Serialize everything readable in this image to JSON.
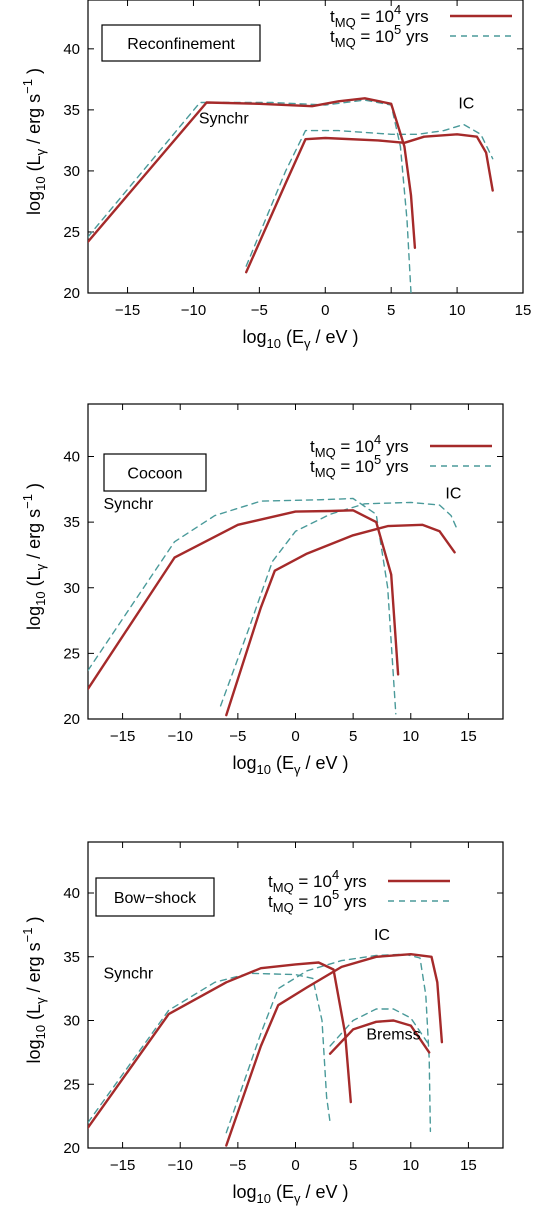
{
  "chart_data": [
    {
      "type": "line",
      "title": "Reconfinement",
      "xlabel": "log10 (Eγ / eV )",
      "ylabel": "log10 (Lγ / erg s−1 )",
      "xlim": [
        -18,
        15
      ],
      "ylim": [
        20,
        44
      ],
      "xticks": [
        "−15",
        "−10",
        "−5",
        "0",
        "5",
        "10",
        "15"
      ],
      "yticks": [
        "20",
        "25",
        "30",
        "35",
        "40"
      ],
      "annotations": [
        "Synchr",
        "IC"
      ],
      "legend_position": "top-right",
      "series": [
        {
          "name": "tMQ = 10^4 yrs",
          "style": "solid",
          "color": "#a52a2a",
          "component": "Synchr",
          "points": [
            [
              -18,
              24.2
            ],
            [
              -9,
              35.6
            ],
            [
              -5,
              35.5
            ],
            [
              -1,
              35.3
            ],
            [
              1,
              35.7
            ],
            [
              3,
              35.95
            ],
            [
              5,
              35.5
            ],
            [
              6,
              32
            ],
            [
              6.5,
              28
            ],
            [
              6.8,
              23.7
            ]
          ]
        },
        {
          "name": "tMQ = 10^5 yrs",
          "style": "dashed",
          "color": "#4a9a9a",
          "component": "Synchr",
          "points": [
            [
              -18,
              24.6
            ],
            [
              -9.5,
              35.6
            ],
            [
              -4,
              35.6
            ],
            [
              0,
              35.4
            ],
            [
              3,
              35.8
            ],
            [
              5,
              35.4
            ],
            [
              5.7,
              32
            ],
            [
              6.2,
              26
            ],
            [
              6.5,
              20
            ]
          ]
        },
        {
          "name": "tMQ = 10^4 yrs",
          "style": "solid",
          "color": "#a52a2a",
          "component": "IC",
          "points": [
            [
              -6,
              21.7
            ],
            [
              -3,
              29
            ],
            [
              -1.5,
              32.6
            ],
            [
              0,
              32.7
            ],
            [
              4,
              32.5
            ],
            [
              6,
              32.3
            ],
            [
              7.5,
              32.8
            ],
            [
              10,
              33
            ],
            [
              11.5,
              32.8
            ],
            [
              12.2,
              31.5
            ],
            [
              12.7,
              28.4
            ]
          ]
        },
        {
          "name": "tMQ = 10^5 yrs",
          "style": "dashed",
          "color": "#4a9a9a",
          "component": "IC",
          "points": [
            [
              -6,
              22.2
            ],
            [
              -3,
              30
            ],
            [
              -1.5,
              33.3
            ],
            [
              1,
              33.3
            ],
            [
              5,
              33
            ],
            [
              7,
              33
            ],
            [
              9,
              33.3
            ],
            [
              10.5,
              33.8
            ],
            [
              11.8,
              33
            ],
            [
              12.7,
              31
            ]
          ]
        }
      ]
    },
    {
      "type": "line",
      "title": "Cocoon",
      "xlabel": "log10 (Eγ / eV )",
      "ylabel": "log10 (Lγ / erg s−1 )",
      "xlim": [
        -18,
        18
      ],
      "ylim": [
        20,
        44
      ],
      "xticks": [
        "−15",
        "−10",
        "−5",
        "0",
        "5",
        "10",
        "15"
      ],
      "yticks": [
        "20",
        "25",
        "30",
        "35",
        "40"
      ],
      "annotations": [
        "Synchr",
        "IC"
      ],
      "legend_position": "top-right",
      "series": [
        {
          "name": "tMQ = 10^4 yrs",
          "style": "solid",
          "color": "#a52a2a",
          "component": "Synchr",
          "points": [
            [
              -18,
              22.3
            ],
            [
              -10.5,
              32.3
            ],
            [
              -5,
              34.8
            ],
            [
              0,
              35.8
            ],
            [
              3,
              35.85
            ],
            [
              5,
              35.9
            ],
            [
              7,
              35
            ],
            [
              8.3,
              31
            ],
            [
              8.9,
              23.4
            ]
          ]
        },
        {
          "name": "tMQ = 10^5 yrs",
          "style": "dashed",
          "color": "#4a9a9a",
          "component": "Synchr",
          "points": [
            [
              -18,
              23.7
            ],
            [
              -10.5,
              33.5
            ],
            [
              -7,
              35.5
            ],
            [
              -3,
              36.6
            ],
            [
              2,
              36.7
            ],
            [
              5,
              36.8
            ],
            [
              7,
              35.6
            ],
            [
              8,
              30
            ],
            [
              8.7,
              20.4
            ]
          ]
        },
        {
          "name": "tMQ = 10^4 yrs",
          "style": "solid",
          "color": "#a52a2a",
          "component": "IC",
          "points": [
            [
              -6,
              20.3
            ],
            [
              -3,
              28.5
            ],
            [
              -1.8,
              31.3
            ],
            [
              1,
              32.6
            ],
            [
              5,
              34
            ],
            [
              8,
              34.7
            ],
            [
              11,
              34.8
            ],
            [
              12.5,
              34.3
            ],
            [
              13.8,
              32.7
            ]
          ]
        },
        {
          "name": "tMQ = 10^5 yrs",
          "style": "dashed",
          "color": "#4a9a9a",
          "component": "IC",
          "points": [
            [
              -6.5,
              21
            ],
            [
              -4,
              27
            ],
            [
              -2,
              32
            ],
            [
              0,
              34.3
            ],
            [
              3,
              35.6
            ],
            [
              6,
              36.4
            ],
            [
              10,
              36.5
            ],
            [
              12.5,
              36.3
            ],
            [
              13.5,
              35.5
            ],
            [
              14,
              34.5
            ]
          ]
        }
      ]
    },
    {
      "type": "line",
      "title": "Bow−shock",
      "xlabel": "log10 (Eγ / eV )",
      "ylabel": "log10 (Lγ / erg s−1 )",
      "xlim": [
        -18,
        18
      ],
      "ylim": [
        20,
        44
      ],
      "xticks": [
        "−15",
        "−10",
        "−5",
        "0",
        "5",
        "10",
        "15"
      ],
      "yticks": [
        "20",
        "25",
        "30",
        "35",
        "40"
      ],
      "annotations": [
        "Synchr",
        "IC",
        "Bremss"
      ],
      "legend_position": "top-right",
      "series": [
        {
          "name": "tMQ = 10^4 yrs",
          "style": "solid",
          "color": "#a52a2a",
          "component": "Synchr",
          "points": [
            [
              -18,
              21.6
            ],
            [
              -11,
              30.5
            ],
            [
              -6,
              33
            ],
            [
              -3,
              34.1
            ],
            [
              0,
              34.4
            ],
            [
              2,
              34.55
            ],
            [
              3.3,
              34
            ],
            [
              4.3,
              29
            ],
            [
              4.8,
              23.6
            ]
          ]
        },
        {
          "name": "tMQ = 10^5 yrs",
          "style": "dashed",
          "color": "#4a9a9a",
          "component": "Synchr",
          "points": [
            [
              -18,
              22
            ],
            [
              -11,
              30.8
            ],
            [
              -7,
              33
            ],
            [
              -4,
              33.7
            ],
            [
              0,
              33.6
            ],
            [
              1.5,
              33.3
            ],
            [
              2.3,
              30
            ],
            [
              2.7,
              24
            ],
            [
              3,
              22
            ]
          ]
        },
        {
          "name": "tMQ = 10^4 yrs",
          "style": "solid",
          "color": "#a52a2a",
          "component": "IC",
          "points": [
            [
              -6,
              20.2
            ],
            [
              -3,
              28
            ],
            [
              -1.5,
              31.2
            ],
            [
              1,
              32.6
            ],
            [
              4,
              34.2
            ],
            [
              7,
              35
            ],
            [
              10,
              35.2
            ],
            [
              11.8,
              35
            ],
            [
              12.3,
              33
            ],
            [
              12.7,
              28.3
            ]
          ]
        },
        {
          "name": "tMQ = 10^5 yrs",
          "style": "dashed",
          "color": "#4a9a9a",
          "component": "IC",
          "points": [
            [
              -6,
              21.2
            ],
            [
              -3,
              29
            ],
            [
              -1.5,
              32.5
            ],
            [
              1,
              33.9
            ],
            [
              4,
              34.7
            ],
            [
              7,
              35.1
            ],
            [
              9.5,
              35.2
            ],
            [
              10.8,
              34.9
            ],
            [
              11.3,
              32
            ],
            [
              11.6,
              27
            ],
            [
              11.7,
              21.3
            ]
          ]
        },
        {
          "name": "tMQ = 10^4 yrs",
          "style": "solid",
          "color": "#a52a2a",
          "component": "Bremss",
          "points": [
            [
              3,
              27.4
            ],
            [
              5,
              29.3
            ],
            [
              7,
              29.9
            ],
            [
              8.5,
              30
            ],
            [
              10,
              29.6
            ],
            [
              11.6,
              27.5
            ]
          ]
        },
        {
          "name": "tMQ = 10^5 yrs",
          "style": "dashed",
          "color": "#4a9a9a",
          "component": "Bremss",
          "points": [
            [
              3,
              28
            ],
            [
              5,
              30
            ],
            [
              7,
              30.9
            ],
            [
              8.5,
              30.9
            ],
            [
              10,
              30.2
            ],
            [
              11.5,
              28.2
            ]
          ]
        }
      ]
    }
  ],
  "panels": [
    {
      "title": "Reconfinement",
      "legend": [
        {
          "base": "t",
          "sub": "MQ",
          "mid": " = 10",
          "sup": "4",
          "tail": " yrs"
        },
        {
          "base": "t",
          "sub": "MQ",
          "mid": " = 10",
          "sup": "5",
          "tail": " yrs"
        }
      ],
      "labels": {
        "synchr": "Synchr",
        "ic": "IC"
      }
    },
    {
      "title": "Cocoon",
      "legend": [
        {
          "base": "t",
          "sub": "MQ",
          "mid": " = 10",
          "sup": "4",
          "tail": " yrs"
        },
        {
          "base": "t",
          "sub": "MQ",
          "mid": " = 10",
          "sup": "5",
          "tail": " yrs"
        }
      ],
      "labels": {
        "synchr": "Synchr",
        "ic": "IC"
      }
    },
    {
      "title": "Bow−shock",
      "legend": [
        {
          "base": "t",
          "sub": "MQ",
          "mid": " = 10",
          "sup": "4",
          "tail": " yrs"
        },
        {
          "base": "t",
          "sub": "MQ",
          "mid": " = 10",
          "sup": "5",
          "tail": " yrs"
        }
      ],
      "labels": {
        "synchr": "Synchr",
        "ic": "IC",
        "bremss": "Bremss"
      }
    }
  ],
  "axis_text": {
    "x": {
      "pre": "log",
      "sub": "10",
      "mid": " (E",
      "greek": "γ",
      "post": " / eV )"
    },
    "y": {
      "pre": "log",
      "sub": "10",
      "mid": " (L",
      "greek": "γ",
      "post": " / erg s",
      "sup": "−1",
      "tail": " )"
    }
  },
  "colors": {
    "solid": "#a52a2a",
    "dashed": "#4a9a9a",
    "axis": "#000000"
  }
}
